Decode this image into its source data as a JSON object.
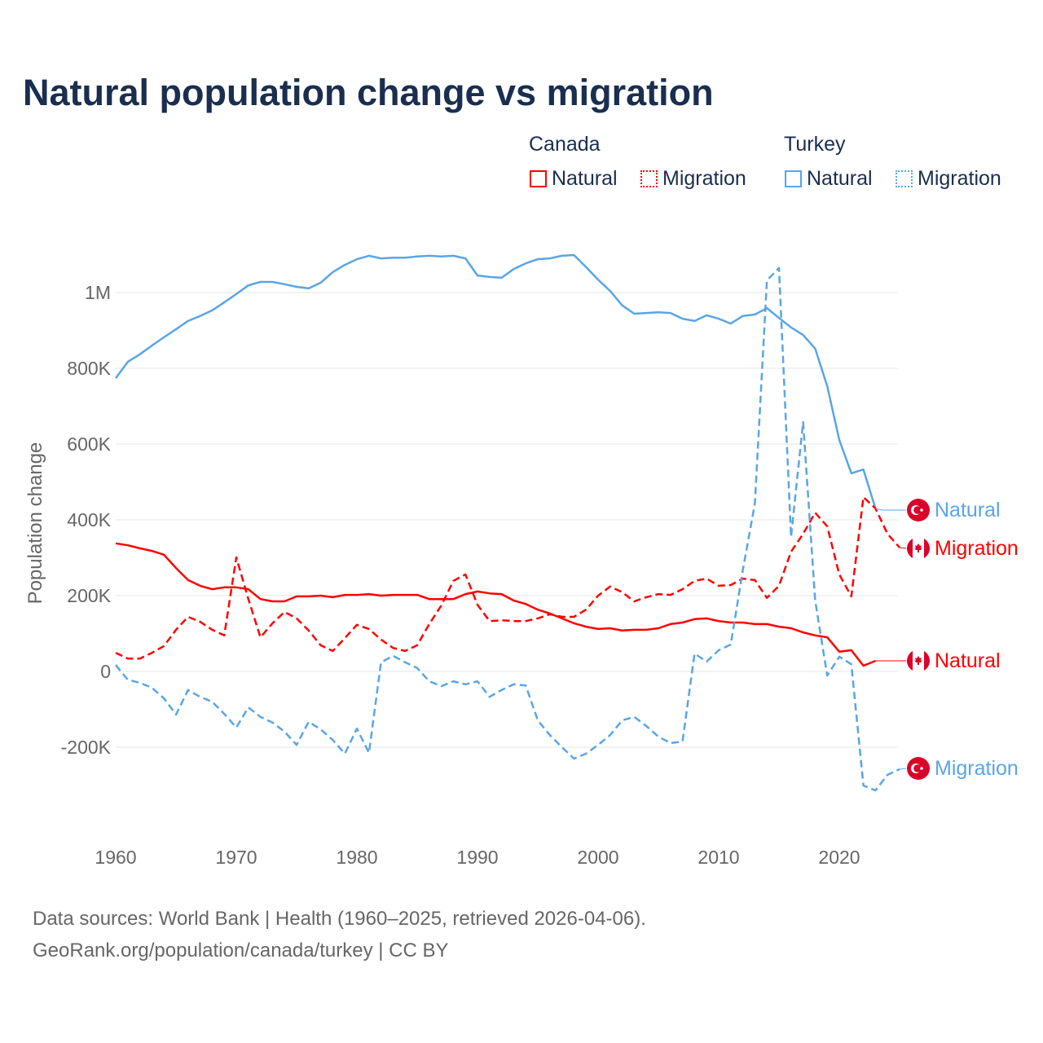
{
  "chart_data": {
    "type": "line",
    "title": "Natural population change vs migration",
    "xlabel": "",
    "ylabel": "Population change",
    "xlim": [
      1960,
      2025
    ],
    "ylim": [
      -380000,
      1130000
    ],
    "x_ticks": [
      1960,
      1970,
      1980,
      1990,
      2000,
      2010,
      2020
    ],
    "x_tick_labels": [
      "1960",
      "1970",
      "1980",
      "1990",
      "2000",
      "2010",
      "2020"
    ],
    "y_ticks": [
      -200000,
      0,
      200000,
      400000,
      600000,
      800000,
      1000000
    ],
    "y_tick_labels": [
      "-200K",
      "0",
      "200K",
      "400K",
      "600K",
      "800K",
      "1M"
    ],
    "grid": true,
    "legend": {
      "placement": "top-right",
      "groups": [
        {
          "name": "Canada",
          "items": [
            "Natural",
            "Migration"
          ]
        },
        {
          "name": "Turkey",
          "items": [
            "Natural",
            "Migration"
          ]
        }
      ]
    },
    "series": [
      {
        "country": "Turkey",
        "name": "Natural",
        "color": "#5aa5e6",
        "dash": "solid",
        "start": 1960,
        "values": [
          774000,
          817000,
          837000,
          860000,
          882000,
          903000,
          925000,
          938000,
          953000,
          974000,
          996000,
          1019000,
          1028000,
          1028000,
          1022000,
          1015000,
          1011000,
          1026000,
          1054000,
          1073000,
          1088000,
          1097000,
          1090000,
          1092000,
          1092000,
          1095000,
          1097000,
          1095000,
          1097000,
          1090000,
          1045000,
          1041000,
          1039000,
          1062000,
          1077000,
          1088000,
          1090000,
          1097000,
          1099000,
          1067000,
          1034000,
          1004000,
          966000,
          944000,
          946000,
          948000,
          946000,
          931000,
          925000,
          940000,
          931000,
          918000,
          938000,
          942000,
          959000,
          933000,
          908000,
          888000,
          852000,
          753000,
          611000,
          523000,
          533000,
          430000
        ]
      },
      {
        "country": "Canada",
        "name": "Migration",
        "color": "#ff0000",
        "dash": "dashed",
        "start": 1960,
        "values": [
          49000,
          34000,
          34000,
          49000,
          67000,
          110000,
          144000,
          131000,
          110000,
          95000,
          301000,
          191000,
          90000,
          127000,
          157000,
          140000,
          108000,
          69000,
          54000,
          88000,
          123000,
          112000,
          84000,
          62000,
          54000,
          69000,
          125000,
          174000,
          239000,
          256000,
          176000,
          133000,
          135000,
          133000,
          133000,
          140000,
          151000,
          144000,
          144000,
          163000,
          200000,
          224000,
          209000,
          185000,
          196000,
          204000,
          202000,
          217000,
          239000,
          245000,
          226000,
          228000,
          245000,
          241000,
          194000,
          226000,
          316000,
          363000,
          419000,
          383000,
          256000,
          198000,
          460000,
          430000,
          363000,
          327000
        ]
      },
      {
        "country": "Canada",
        "name": "Natural",
        "color": "#ff0000",
        "dash": "solid",
        "start": 1960,
        "values": [
          338000,
          333000,
          325000,
          318000,
          308000,
          273000,
          241000,
          226000,
          217000,
          222000,
          222000,
          217000,
          191000,
          185000,
          185000,
          198000,
          198000,
          200000,
          196000,
          202000,
          202000,
          204000,
          200000,
          202000,
          202000,
          202000,
          191000,
          191000,
          191000,
          204000,
          211000,
          206000,
          204000,
          187000,
          178000,
          163000,
          153000,
          140000,
          127000,
          118000,
          112000,
          114000,
          108000,
          110000,
          110000,
          114000,
          125000,
          129000,
          138000,
          140000,
          133000,
          129000,
          129000,
          125000,
          125000,
          118000,
          114000,
          103000,
          95000,
          90000,
          52000,
          56000,
          15000,
          28000
        ]
      },
      {
        "country": "Turkey",
        "name": "Migration",
        "color": "#5aa5e6",
        "dash": "dashed",
        "start": 1960,
        "values": [
          17000,
          -22000,
          -30000,
          -43000,
          -71000,
          -114000,
          -49000,
          -67000,
          -80000,
          -112000,
          -148000,
          -95000,
          -120000,
          -135000,
          -159000,
          -194000,
          -133000,
          -153000,
          -181000,
          -217000,
          -151000,
          -215000,
          24000,
          41000,
          24000,
          9000,
          -26000,
          -39000,
          -26000,
          -34000,
          -26000,
          -67000,
          -49000,
          -34000,
          -37000,
          -129000,
          -168000,
          -200000,
          -230000,
          -217000,
          -194000,
          -168000,
          -129000,
          -120000,
          -144000,
          -172000,
          -189000,
          -185000,
          47000,
          26000,
          56000,
          71000,
          267000,
          443000,
          1032000,
          1065000,
          355000,
          658000,
          187000,
          -11000,
          39000,
          19000,
          -301000,
          -314000,
          -273000,
          -258000
        ]
      }
    ],
    "end_labels": [
      {
        "country": "Turkey",
        "label": "Natural",
        "color": "#5aa5e6",
        "anchor_value": 430000
      },
      {
        "country": "Canada",
        "label": "Migration",
        "color": "#ff0000",
        "anchor_value": 327000
      },
      {
        "country": "Canada",
        "label": "Natural",
        "color": "#ff0000",
        "anchor_value": 28000
      },
      {
        "country": "Turkey",
        "label": "Migration",
        "color": "#5aa5e6",
        "anchor_value": -258000
      }
    ]
  },
  "footer": {
    "line1": "Data sources: World Bank | Health (1960–2025, retrieved 2026-04-06).",
    "line2": "GeoRank.org/population/canada/turkey | CC BY"
  },
  "colors": {
    "title": "#1a2e4f",
    "canada": "#ff0000",
    "turkey": "#5aa5e6",
    "flag": "#d90429"
  }
}
